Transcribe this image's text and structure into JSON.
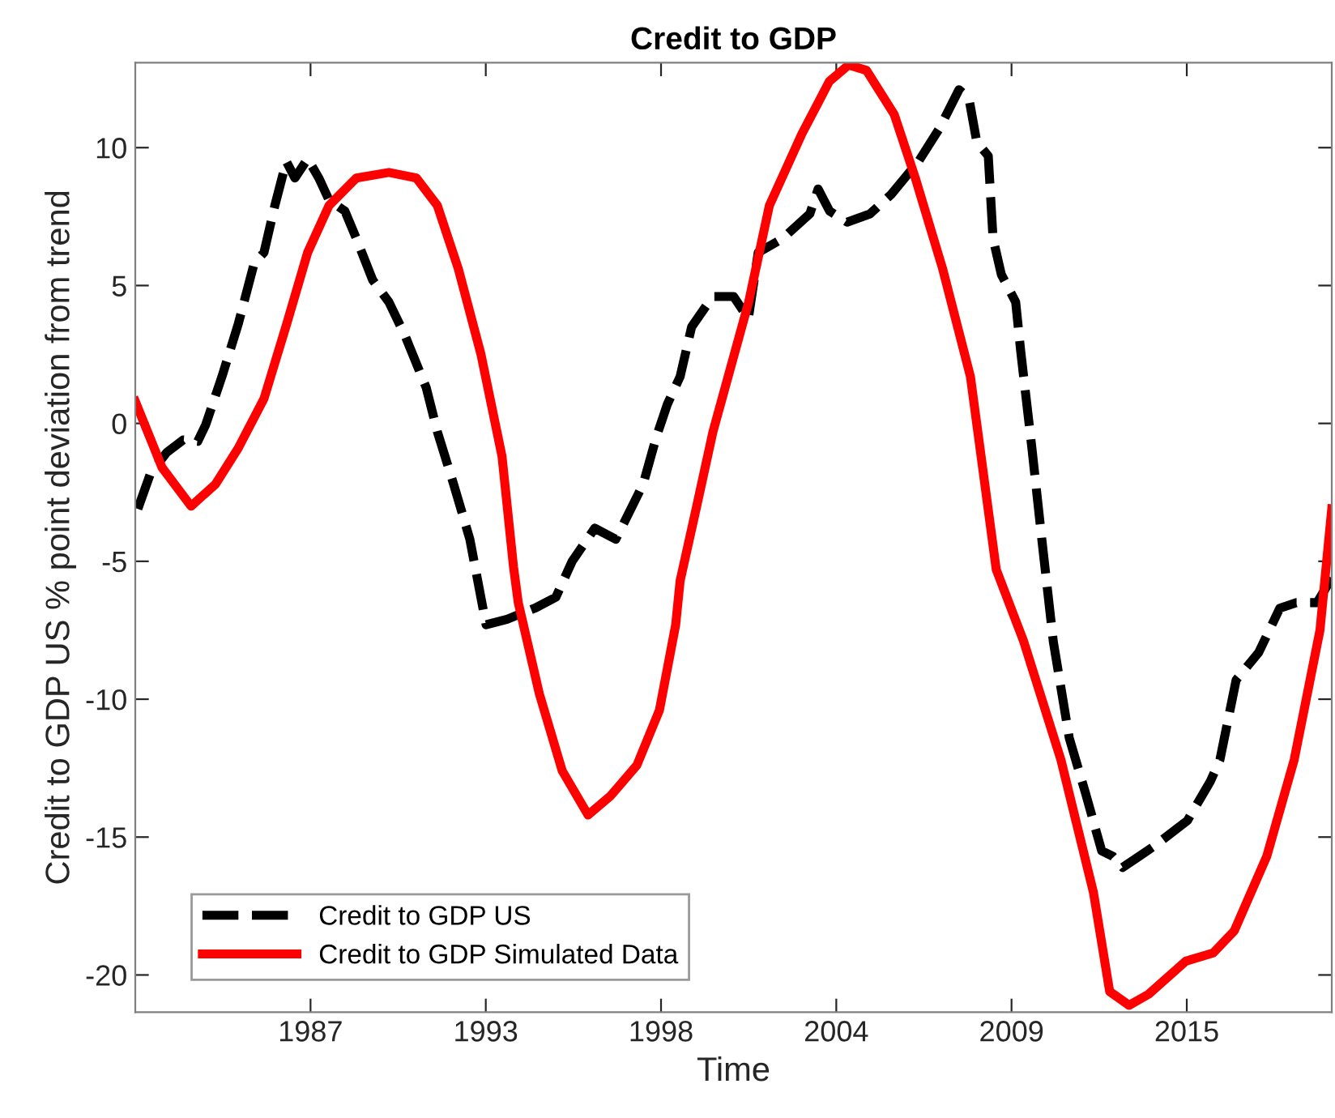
{
  "chart_data": {
    "type": "line",
    "title": "Credit to GDP",
    "xlabel": "Time",
    "ylabel": "Credit to GDP US % point deviation from trend",
    "xlim": [
      1981.75,
      2019.3
    ],
    "ylim": [
      -21.35,
      13.08
    ],
    "xticks": [
      {
        "value": 1987.25,
        "label": "1987"
      },
      {
        "value": 1992.75,
        "label": "1993"
      },
      {
        "value": 1998.25,
        "label": "1998"
      },
      {
        "value": 2003.75,
        "label": "2004"
      },
      {
        "value": 2009.25,
        "label": "2009"
      },
      {
        "value": 2014.75,
        "label": "2015"
      }
    ],
    "yticks": [
      -20,
      -15,
      -10,
      -5,
      0,
      5,
      10
    ],
    "grid": false,
    "legend": "bottom left",
    "series": [
      {
        "name": "Credit to GDP US",
        "color": "#000000",
        "line_style": "dashed",
        "x": [
          1981.83,
          1982.23,
          1982.74,
          1983.25,
          1983.71,
          1983.96,
          1984.47,
          1984.98,
          1985.48,
          1985.79,
          1986.13,
          1986.49,
          1986.76,
          1987.16,
          1987.51,
          1987.83,
          1988.33,
          1988.69,
          1989.2,
          1989.71,
          1990.21,
          1990.88,
          1991.23,
          1991.74,
          1992.25,
          1992.76,
          1993.42,
          1994.29,
          1994.95,
          1995.46,
          1996.17,
          1996.83,
          1997.69,
          1998.1,
          1998.45,
          1998.85,
          1999.21,
          1999.87,
          2000.53,
          2000.99,
          2001.3,
          2002.06,
          2002.92,
          2003.18,
          2003.54,
          2004.09,
          2004.81,
          2005.47,
          2006.33,
          2006.99,
          2007.6,
          2007.91,
          2008.16,
          2008.52,
          2008.67,
          2008.93,
          2009.38,
          2009.54,
          2009.89,
          2010.2,
          2010.56,
          2011.06,
          2011.57,
          2012.08,
          2012.43,
          2012.74,
          2013.25,
          2013.76,
          2014.77,
          2015.48,
          2015.79,
          2016.3,
          2017.01,
          2017.67,
          2018.18,
          2018.84,
          2019.3
        ],
        "values": [
          -3.1,
          -1.8,
          -1.05,
          -0.6,
          -0.65,
          -0.05,
          1.7,
          3.6,
          5.8,
          6.2,
          7.9,
          9.5,
          8.9,
          9.6,
          8.9,
          8.1,
          7.7,
          6.7,
          5.2,
          4.4,
          3.2,
          1.3,
          -0.3,
          -2.2,
          -4.2,
          -7.3,
          -7.1,
          -6.7,
          -6.3,
          -5.0,
          -3.8,
          -4.2,
          -2.2,
          -0.5,
          0.7,
          1.7,
          3.5,
          4.6,
          4.6,
          3.8,
          6.2,
          6.7,
          7.6,
          8.5,
          7.7,
          7.3,
          7.6,
          8.3,
          9.5,
          10.7,
          12.1,
          11.8,
          10.2,
          9.7,
          6.7,
          5.4,
          4.4,
          2.6,
          -0.9,
          -4.2,
          -7.9,
          -11.4,
          -13.4,
          -15.5,
          -15.7,
          -16.1,
          -15.7,
          -15.3,
          -14.4,
          -13.0,
          -12.2,
          -9.3,
          -8.3,
          -6.7,
          -6.5,
          -6.5,
          -5.6
        ]
      },
      {
        "name": "Credit to GDP Simulated Data",
        "color": "#ff0000",
        "line_style": "solid",
        "x": [
          1981.75,
          1982.59,
          1983.5,
          1984.27,
          1984.98,
          1985.79,
          1986.5,
          1987.16,
          1987.83,
          1988.69,
          1989.71,
          1990.57,
          1991.23,
          1991.89,
          1992.6,
          1993.26,
          1993.62,
          1993.77,
          1994.43,
          1995.15,
          1995.96,
          1996.67,
          1997.49,
          1998.2,
          1998.71,
          1998.85,
          1999.37,
          1999.88,
          2001.0,
          2001.65,
          2002.67,
          2003.53,
          2004.14,
          2004.7,
          2005.57,
          2006.23,
          2007.09,
          2007.96,
          2008.77,
          2009.63,
          2010.8,
          2011.82,
          2012.33,
          2012.94,
          2013.55,
          2014.72,
          2015.58,
          2016.24,
          2017.26,
          2018.12,
          2018.93,
          2019.3
        ],
        "values": [
          0.8,
          -1.6,
          -3.0,
          -2.2,
          -0.9,
          0.9,
          3.6,
          6.2,
          7.9,
          8.9,
          9.1,
          8.9,
          7.9,
          5.6,
          2.5,
          -1.2,
          -5.2,
          -6.5,
          -9.8,
          -12.6,
          -14.2,
          -13.5,
          -12.4,
          -10.4,
          -7.3,
          -5.7,
          -3.0,
          -0.3,
          4.4,
          7.9,
          10.5,
          12.4,
          13.0,
          12.8,
          11.2,
          8.9,
          5.6,
          1.7,
          -5.3,
          -7.9,
          -12.2,
          -17.0,
          -20.6,
          -21.1,
          -20.7,
          -19.5,
          -19.2,
          -18.4,
          -15.7,
          -12.2,
          -7.5,
          -3.1
        ]
      }
    ]
  }
}
